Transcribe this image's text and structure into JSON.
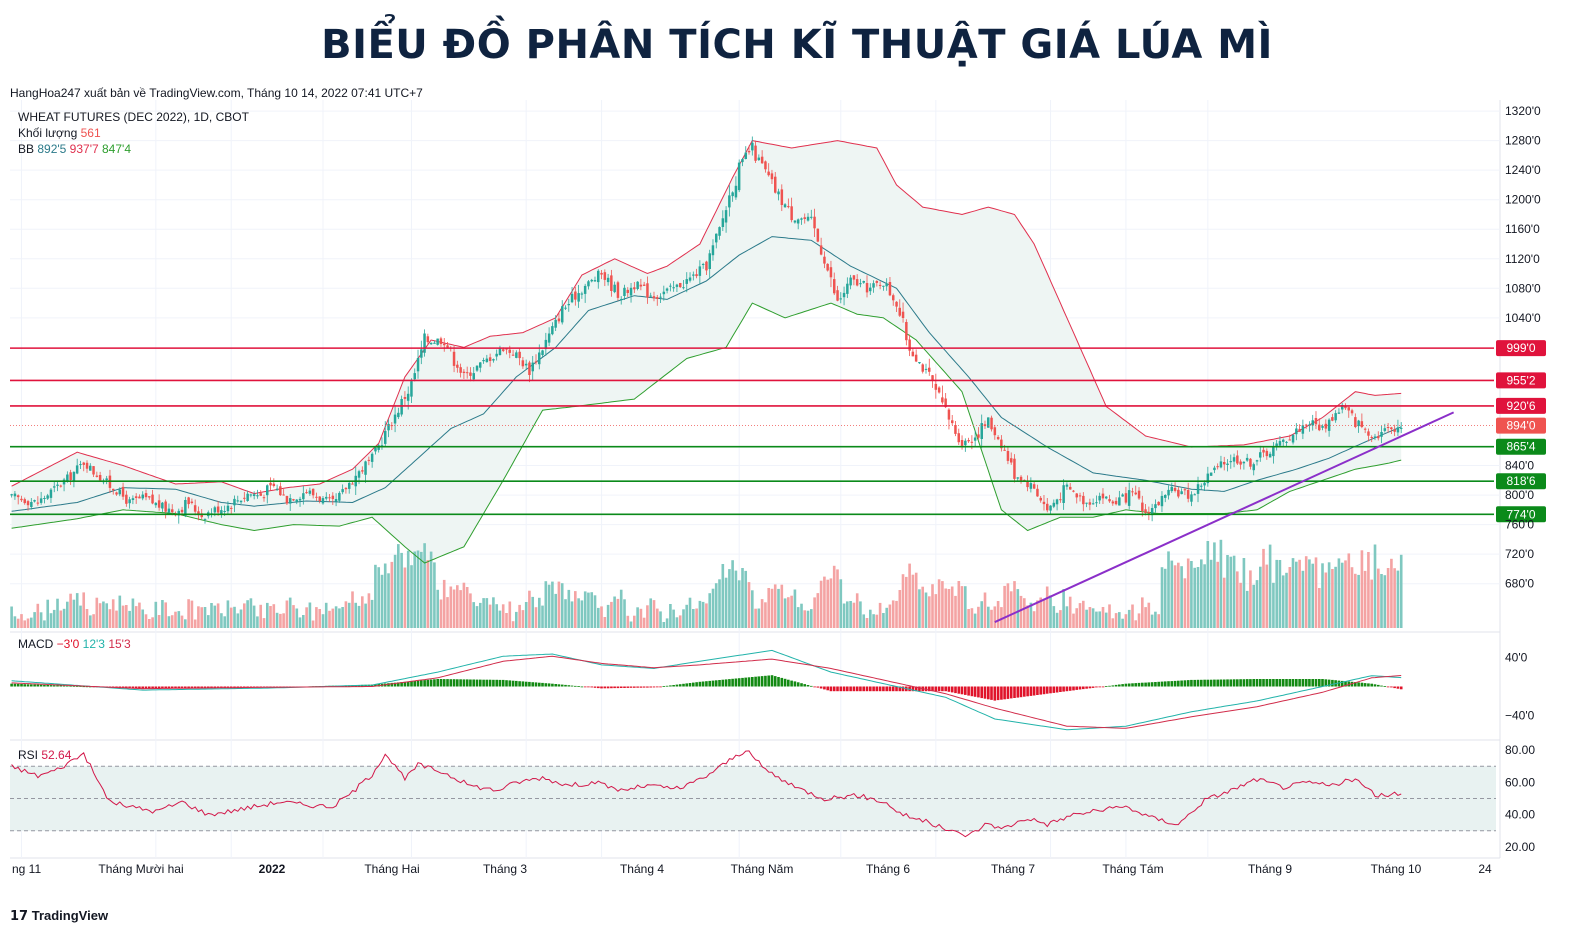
{
  "title": "BIỂU ĐỒ PHÂN TÍCH KĨ THUẬT GIÁ LÚA MÌ",
  "subtitle": "HangHoa247 xuất bản về TradingView.com, Tháng 10 14, 2022 07:41 UTC+7",
  "footer_brand": "TradingView",
  "footer_logo_icon": "tradingview-logo-icon",
  "colors": {
    "up": "#26a69a",
    "down": "#ef5350",
    "bb_mid": "#2b7a8a",
    "bb_upper": "#e0304e",
    "bb_lower": "#2e9e2e",
    "bb_fill": "#eef5f3",
    "resistance": "#e0133c",
    "support": "#0b8a1a",
    "trendline": "#8b2fc9",
    "macd_line": "#22b3aa",
    "signal_line": "#d12c4a",
    "hist_pos": "#138a13",
    "hist_neg": "#e0132a",
    "rsi": "#d2184a",
    "vol_up": "#7fc8c0",
    "vol_down": "#f4a3a3"
  },
  "legend": {
    "symbol": "WHEAT FUTURES (DEC 2022), 1D, CBOT",
    "volume_label": "Khối lượng",
    "volume_value": "561",
    "bb_label": "BB",
    "bb_mid": "892'5",
    "bb_upper": "937'7",
    "bb_lower": "847'4",
    "macd_label": "MACD",
    "macd_hist": "−3'0",
    "macd_line": "12'3",
    "macd_signal": "15'3",
    "rsi_label": "RSI",
    "rsi_value": "52.64"
  },
  "chart_data": [
    {
      "type": "candlestick",
      "title": "WHEAT FUTURES (DEC 2022), 1D, CBOT",
      "ylim": [
        620,
        1335
      ],
      "y_ticks": [
        {
          "v": 1320,
          "label": "1320'0"
        },
        {
          "v": 1280,
          "label": "1280'0"
        },
        {
          "v": 1240,
          "label": "1240'0"
        },
        {
          "v": 1200,
          "label": "1200'0"
        },
        {
          "v": 1160,
          "label": "1160'0"
        },
        {
          "v": 1120,
          "label": "1120'0"
        },
        {
          "v": 1080,
          "label": "1080'0"
        },
        {
          "v": 1040,
          "label": "1040'0"
        },
        {
          "v": 840,
          "label": "840'0"
        },
        {
          "v": 800,
          "label": "800'0"
        },
        {
          "v": 760,
          "label": "760'0"
        },
        {
          "v": 720,
          "label": "720'0"
        },
        {
          "v": 680,
          "label": "680'0"
        }
      ],
      "x_labels": [
        "ng 11",
        "Tháng Mười hai",
        "2022",
        "Tháng Hai",
        "Tháng 3",
        "Tháng 4",
        "Tháng Năm",
        "Tháng 6",
        "Tháng 7",
        "Tháng Tám",
        "Tháng 9",
        "Tháng 10",
        "24"
      ],
      "close_path": [
        [
          0,
          797
        ],
        [
          8,
          790
        ],
        [
          14,
          812
        ],
        [
          18,
          826
        ],
        [
          22,
          845
        ],
        [
          26,
          828
        ],
        [
          32,
          806
        ],
        [
          36,
          790
        ],
        [
          40,
          796
        ],
        [
          46,
          784
        ],
        [
          50,
          778
        ],
        [
          54,
          790
        ],
        [
          58,
          772
        ],
        [
          62,
          780
        ],
        [
          66,
          786
        ],
        [
          72,
          802
        ],
        [
          76,
          800
        ],
        [
          80,
          812
        ],
        [
          84,
          795
        ],
        [
          90,
          806
        ],
        [
          98,
          786
        ],
        [
          104,
          822
        ],
        [
          110,
          850
        ],
        [
          116,
          900
        ],
        [
          122,
          950
        ],
        [
          126,
          1010
        ],
        [
          132,
          1010
        ],
        [
          138,
          960
        ],
        [
          144,
          980
        ],
        [
          150,
          1000
        ],
        [
          154,
          990
        ],
        [
          158,
          970
        ],
        [
          162,
          1000
        ],
        [
          168,
          1050
        ],
        [
          174,
          1080
        ],
        [
          180,
          1100
        ],
        [
          186,
          1070
        ],
        [
          190,
          1085
        ],
        [
          196,
          1070
        ],
        [
          202,
          1080
        ],
        [
          206,
          1090
        ],
        [
          212,
          1110
        ],
        [
          216,
          1160
        ],
        [
          220,
          1220
        ],
        [
          224,
          1260
        ],
        [
          226,
          1270
        ],
        [
          232,
          1220
        ],
        [
          238,
          1180
        ],
        [
          244,
          1170
        ],
        [
          248,
          1120
        ],
        [
          252,
          1060
        ],
        [
          256,
          1090
        ],
        [
          262,
          1080
        ],
        [
          266,
          1090
        ],
        [
          270,
          1060
        ],
        [
          274,
          1000
        ],
        [
          280,
          960
        ],
        [
          284,
          920
        ],
        [
          290,
          870
        ],
        [
          294,
          880
        ],
        [
          298,
          900
        ],
        [
          302,
          870
        ],
        [
          306,
          830
        ],
        [
          312,
          810
        ],
        [
          316,
          780
        ],
        [
          322,
          810
        ],
        [
          328,
          790
        ],
        [
          332,
          800
        ],
        [
          336,
          790
        ],
        [
          342,
          800
        ],
        [
          346,
          775
        ],
        [
          350,
          790
        ],
        [
          354,
          805
        ],
        [
          360,
          800
        ],
        [
          366,
          830
        ],
        [
          372,
          850
        ],
        [
          378,
          845
        ],
        [
          384,
          860
        ],
        [
          390,
          880
        ],
        [
          396,
          900
        ],
        [
          400,
          890
        ],
        [
          406,
          920
        ],
        [
          410,
          900
        ],
        [
          416,
          880
        ],
        [
          420,
          890
        ],
        [
          424,
          894
        ]
      ],
      "bb_upper_path": [
        [
          0,
          812
        ],
        [
          20,
          858
        ],
        [
          34,
          840
        ],
        [
          50,
          815
        ],
        [
          64,
          818
        ],
        [
          74,
          802
        ],
        [
          84,
          810
        ],
        [
          94,
          815
        ],
        [
          104,
          835
        ],
        [
          112,
          870
        ],
        [
          120,
          960
        ],
        [
          128,
          1010
        ],
        [
          138,
          1000
        ],
        [
          146,
          1015
        ],
        [
          156,
          1020
        ],
        [
          166,
          1040
        ],
        [
          174,
          1098
        ],
        [
          184,
          1120
        ],
        [
          194,
          1100
        ],
        [
          200,
          1110
        ],
        [
          210,
          1140
        ],
        [
          220,
          1230
        ],
        [
          226,
          1280
        ],
        [
          238,
          1270
        ],
        [
          252,
          1280
        ],
        [
          264,
          1270
        ],
        [
          270,
          1220
        ],
        [
          278,
          1190
        ],
        [
          290,
          1180
        ],
        [
          298,
          1190
        ],
        [
          306,
          1180
        ],
        [
          312,
          1140
        ],
        [
          320,
          1060
        ],
        [
          326,
          1000
        ],
        [
          334,
          920
        ],
        [
          346,
          880
        ],
        [
          360,
          865
        ],
        [
          376,
          868
        ],
        [
          390,
          880
        ],
        [
          400,
          905
        ],
        [
          410,
          940
        ],
        [
          416,
          935
        ],
        [
          424,
          937.7
        ]
      ],
      "bb_mid_path": [
        [
          0,
          778
        ],
        [
          20,
          790
        ],
        [
          34,
          810
        ],
        [
          50,
          808
        ],
        [
          64,
          790
        ],
        [
          74,
          785
        ],
        [
          90,
          792
        ],
        [
          104,
          790
        ],
        [
          114,
          810
        ],
        [
          124,
          850
        ],
        [
          134,
          890
        ],
        [
          144,
          910
        ],
        [
          154,
          960
        ],
        [
          166,
          1000
        ],
        [
          176,
          1050
        ],
        [
          190,
          1070
        ],
        [
          200,
          1065
        ],
        [
          212,
          1090
        ],
        [
          222,
          1125
        ],
        [
          232,
          1150
        ],
        [
          244,
          1145
        ],
        [
          256,
          1110
        ],
        [
          270,
          1080
        ],
        [
          280,
          1020
        ],
        [
          292,
          960
        ],
        [
          302,
          905
        ],
        [
          316,
          865
        ],
        [
          330,
          830
        ],
        [
          346,
          820
        ],
        [
          360,
          808
        ],
        [
          370,
          805
        ],
        [
          380,
          820
        ],
        [
          392,
          835
        ],
        [
          402,
          850
        ],
        [
          412,
          870
        ],
        [
          424,
          892.5
        ]
      ],
      "bb_lower_path": [
        [
          0,
          755
        ],
        [
          20,
          768
        ],
        [
          34,
          780
        ],
        [
          50,
          775
        ],
        [
          64,
          760
        ],
        [
          74,
          752
        ],
        [
          86,
          760
        ],
        [
          100,
          758
        ],
        [
          110,
          770
        ],
        [
          120,
          730
        ],
        [
          126,
          708
        ],
        [
          138,
          730
        ],
        [
          150,
          820
        ],
        [
          162,
          915
        ],
        [
          172,
          920
        ],
        [
          190,
          930
        ],
        [
          206,
          985
        ],
        [
          218,
          1000
        ],
        [
          226,
          1060
        ],
        [
          236,
          1040
        ],
        [
          250,
          1060
        ],
        [
          258,
          1045
        ],
        [
          266,
          1040
        ],
        [
          276,
          1010
        ],
        [
          290,
          940
        ],
        [
          302,
          780
        ],
        [
          310,
          752
        ],
        [
          320,
          770
        ],
        [
          330,
          770
        ],
        [
          340,
          780
        ],
        [
          350,
          775
        ],
        [
          360,
          775
        ],
        [
          370,
          775
        ],
        [
          380,
          780
        ],
        [
          390,
          805
        ],
        [
          400,
          820
        ],
        [
          410,
          835
        ],
        [
          420,
          843
        ],
        [
          424,
          847.4
        ]
      ],
      "resistance": [
        {
          "value": 999,
          "label": "999'0"
        },
        {
          "value": 955.25,
          "label": "955'2"
        },
        {
          "value": 920.75,
          "label": "920'6"
        }
      ],
      "support": [
        {
          "value": 865.5,
          "label": "865'4"
        },
        {
          "value": 818.75,
          "label": "818'6"
        },
        {
          "value": 774,
          "label": "774'0"
        }
      ],
      "last_price": {
        "value": 894,
        "label": "894'0"
      },
      "trendline": [
        [
          300,
          628
        ],
        [
          440,
          912
        ]
      ],
      "volume_max": 3200
    },
    {
      "type": "line",
      "title": "MACD",
      "ylim": [
        -70,
        70
      ],
      "y_ticks": [
        {
          "v": 40,
          "label": "40'0"
        },
        {
          "v": -40,
          "label": "−40'0"
        }
      ],
      "macd_path": [
        [
          0,
          8
        ],
        [
          40,
          -5
        ],
        [
          80,
          -2
        ],
        [
          110,
          2
        ],
        [
          130,
          20
        ],
        [
          150,
          42
        ],
        [
          165,
          45
        ],
        [
          180,
          30
        ],
        [
          196,
          25
        ],
        [
          210,
          35
        ],
        [
          232,
          50
        ],
        [
          250,
          20
        ],
        [
          270,
          0
        ],
        [
          285,
          -15
        ],
        [
          300,
          -45
        ],
        [
          322,
          -60
        ],
        [
          340,
          -55
        ],
        [
          360,
          -35
        ],
        [
          380,
          -20
        ],
        [
          400,
          0
        ],
        [
          415,
          15
        ],
        [
          424,
          12.3
        ]
      ],
      "signal_path": [
        [
          0,
          5
        ],
        [
          40,
          -3
        ],
        [
          80,
          -1
        ],
        [
          110,
          0
        ],
        [
          130,
          12
        ],
        [
          150,
          35
        ],
        [
          165,
          42
        ],
        [
          180,
          32
        ],
        [
          196,
          26
        ],
        [
          210,
          30
        ],
        [
          232,
          38
        ],
        [
          250,
          25
        ],
        [
          270,
          5
        ],
        [
          285,
          -10
        ],
        [
          300,
          -30
        ],
        [
          322,
          -55
        ],
        [
          340,
          -58
        ],
        [
          360,
          -42
        ],
        [
          380,
          -28
        ],
        [
          400,
          -8
        ],
        [
          415,
          12
        ],
        [
          424,
          15.3
        ]
      ]
    },
    {
      "type": "line",
      "title": "RSI",
      "ylim": [
        15,
        85
      ],
      "y_ticks": [
        {
          "v": 80,
          "label": "80.00"
        },
        {
          "v": 60,
          "label": "60.00"
        },
        {
          "v": 40,
          "label": "40.00"
        },
        {
          "v": 20,
          "label": "20.00"
        }
      ],
      "bands": [
        70,
        50,
        30
      ],
      "rsi_path": [
        [
          0,
          70
        ],
        [
          8,
          64
        ],
        [
          14,
          68
        ],
        [
          22,
          78
        ],
        [
          26,
          62
        ],
        [
          30,
          48
        ],
        [
          36,
          45
        ],
        [
          44,
          42
        ],
        [
          52,
          48
        ],
        [
          60,
          40
        ],
        [
          66,
          42
        ],
        [
          74,
          45
        ],
        [
          82,
          48
        ],
        [
          90,
          46
        ],
        [
          98,
          45
        ],
        [
          104,
          54
        ],
        [
          110,
          65
        ],
        [
          114,
          78
        ],
        [
          120,
          62
        ],
        [
          124,
          71
        ],
        [
          132,
          66
        ],
        [
          140,
          58
        ],
        [
          148,
          55
        ],
        [
          154,
          60
        ],
        [
          162,
          63
        ],
        [
          170,
          58
        ],
        [
          178,
          60
        ],
        [
          186,
          55
        ],
        [
          194,
          58
        ],
        [
          204,
          56
        ],
        [
          212,
          64
        ],
        [
          220,
          75
        ],
        [
          224,
          80
        ],
        [
          230,
          68
        ],
        [
          238,
          58
        ],
        [
          248,
          50
        ],
        [
          258,
          52
        ],
        [
          266,
          48
        ],
        [
          272,
          40
        ],
        [
          280,
          35
        ],
        [
          286,
          30
        ],
        [
          292,
          27
        ],
        [
          298,
          35
        ],
        [
          302,
          31
        ],
        [
          310,
          38
        ],
        [
          316,
          34
        ],
        [
          324,
          40
        ],
        [
          330,
          42
        ],
        [
          340,
          45
        ],
        [
          348,
          38
        ],
        [
          356,
          34
        ],
        [
          364,
          49
        ],
        [
          372,
          55
        ],
        [
          380,
          62
        ],
        [
          388,
          57
        ],
        [
          396,
          60
        ],
        [
          402,
          58
        ],
        [
          410,
          62
        ],
        [
          416,
          52
        ],
        [
          424,
          52.64
        ]
      ]
    }
  ]
}
